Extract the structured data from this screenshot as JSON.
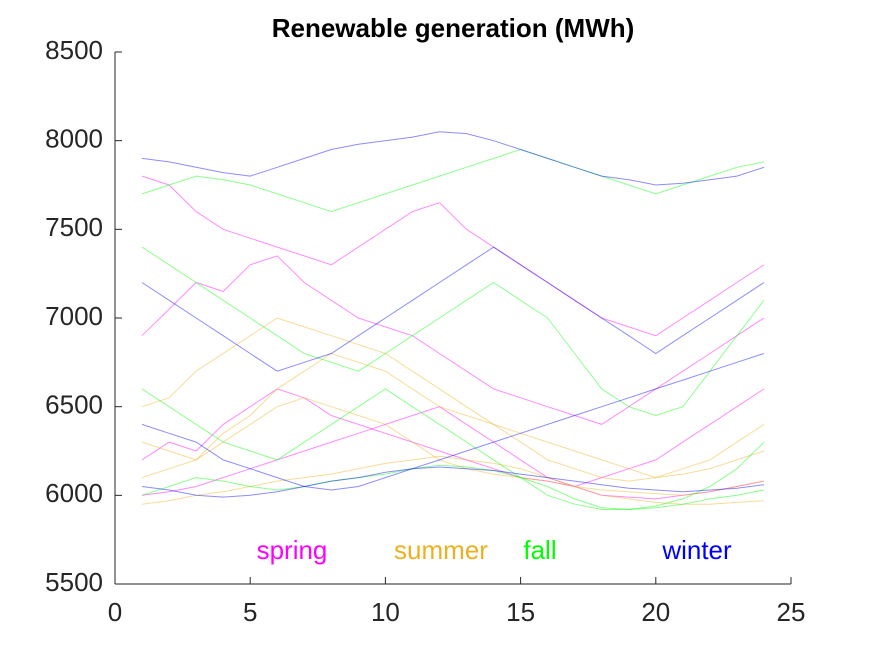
{
  "chart_data": {
    "type": "line",
    "title": "Renewable generation (MWh)",
    "x": [
      1,
      2,
      3,
      4,
      5,
      6,
      7,
      8,
      9,
      10,
      11,
      12,
      13,
      14,
      15,
      16,
      17,
      18,
      19,
      20,
      21,
      22,
      23,
      24
    ],
    "xlim": [
      0,
      25
    ],
    "xticks": [
      0,
      5,
      10,
      15,
      20,
      25
    ],
    "ylim": [
      5500,
      8500
    ],
    "yticks": [
      5500,
      6000,
      6500,
      7000,
      7500,
      8000,
      8500
    ],
    "series": [
      {
        "name": "spring",
        "color": "#ff00ff",
        "lines": [
          [
            6900,
            7050,
            7200,
            7150,
            7300,
            7350,
            7200,
            7100,
            7000,
            6950,
            6900,
            6800,
            6700,
            6600,
            6550,
            6500,
            6450,
            6400,
            6500,
            6600,
            6700,
            6800,
            6900,
            7000
          ],
          [
            6200,
            6300,
            6250,
            6400,
            6500,
            6600,
            6550,
            6450,
            6400,
            6350,
            6300,
            6250,
            6200,
            6150,
            6100,
            6080,
            6050,
            6100,
            6150,
            6200,
            6300,
            6400,
            6500,
            6600
          ],
          [
            7800,
            7750,
            7600,
            7500,
            7450,
            7400,
            7350,
            7300,
            7400,
            7500,
            7600,
            7650,
            7500,
            7400,
            7300,
            7200,
            7100,
            7000,
            6950,
            6900,
            7000,
            7100,
            7200,
            7300
          ],
          [
            6000,
            6020,
            6050,
            6100,
            6150,
            6200,
            6250,
            6300,
            6350,
            6400,
            6450,
            6500,
            6400,
            6300,
            6200,
            6100,
            6050,
            6000,
            5990,
            5980,
            6000,
            6020,
            6050,
            6080
          ]
        ]
      },
      {
        "name": "summer",
        "color": "#edb120",
        "lines": [
          [
            6100,
            6150,
            6200,
            6300,
            6400,
            6500,
            6550,
            6500,
            6450,
            6400,
            6300,
            6200,
            6150,
            6120,
            6100,
            6080,
            6050,
            6030,
            6020,
            6010,
            6000,
            6020,
            6050,
            6080
          ],
          [
            6500,
            6550,
            6700,
            6800,
            6900,
            7000,
            6950,
            6900,
            6850,
            6800,
            6700,
            6600,
            6500,
            6400,
            6300,
            6200,
            6150,
            6100,
            6080,
            6100,
            6150,
            6200,
            6300,
            6400
          ],
          [
            5950,
            5970,
            6000,
            6020,
            6050,
            6080,
            6100,
            6120,
            6150,
            6180,
            6200,
            6220,
            6200,
            6180,
            6150,
            6100,
            6050,
            6000,
            5980,
            5960,
            5950,
            5950,
            5960,
            5970
          ],
          [
            6300,
            6250,
            6200,
            6350,
            6450,
            6600,
            6700,
            6800,
            6750,
            6700,
            6600,
            6500,
            6450,
            6400,
            6350,
            6300,
            6250,
            6200,
            6150,
            6100,
            6120,
            6150,
            6200,
            6250
          ]
        ]
      },
      {
        "name": "fall",
        "color": "#00ff00",
        "lines": [
          [
            7400,
            7300,
            7200,
            7100,
            7000,
            6900,
            6800,
            6750,
            6700,
            6800,
            6900,
            7000,
            7100,
            7200,
            7100,
            7000,
            6800,
            6600,
            6500,
            6450,
            6500,
            6700,
            6900,
            7100
          ],
          [
            6000,
            6050,
            6100,
            6080,
            6050,
            6030,
            6050,
            6080,
            6100,
            6120,
            6150,
            6170,
            6160,
            6140,
            6100,
            6050,
            5980,
            5930,
            5920,
            5930,
            5950,
            5980,
            6000,
            6030
          ],
          [
            7700,
            7750,
            7800,
            7780,
            7750,
            7700,
            7650,
            7600,
            7650,
            7700,
            7750,
            7800,
            7850,
            7900,
            7950,
            7900,
            7850,
            7800,
            7750,
            7700,
            7750,
            7800,
            7850,
            7880
          ],
          [
            6600,
            6500,
            6400,
            6300,
            6250,
            6200,
            6300,
            6400,
            6500,
            6600,
            6500,
            6400,
            6300,
            6200,
            6100,
            6000,
            5950,
            5920,
            5920,
            5940,
            5980,
            6050,
            6150,
            6300
          ]
        ]
      },
      {
        "name": "winter",
        "color": "#0000ff",
        "lines": [
          [
            7900,
            7880,
            7850,
            7820,
            7800,
            7850,
            7900,
            7950,
            7980,
            8000,
            8020,
            8050,
            8040,
            8000,
            7950,
            7900,
            7850,
            7800,
            7780,
            7750,
            7760,
            7780,
            7800,
            7850
          ],
          [
            7200,
            7100,
            7000,
            6900,
            6800,
            6700,
            6750,
            6800,
            6900,
            7000,
            7100,
            7200,
            7300,
            7400,
            7300,
            7200,
            7100,
            7000,
            6900,
            6800,
            6900,
            7000,
            7100,
            7200
          ],
          [
            6400,
            6350,
            6300,
            6200,
            6150,
            6100,
            6050,
            6030,
            6050,
            6100,
            6150,
            6200,
            6250,
            6300,
            6350,
            6400,
            6450,
            6500,
            6550,
            6600,
            6650,
            6700,
            6750,
            6800
          ],
          [
            6050,
            6030,
            6000,
            5990,
            6000,
            6020,
            6050,
            6080,
            6100,
            6130,
            6150,
            6160,
            6150,
            6140,
            6120,
            6100,
            6080,
            6060,
            6040,
            6030,
            6020,
            6030,
            6040,
            6060
          ]
        ]
      }
    ]
  }
}
